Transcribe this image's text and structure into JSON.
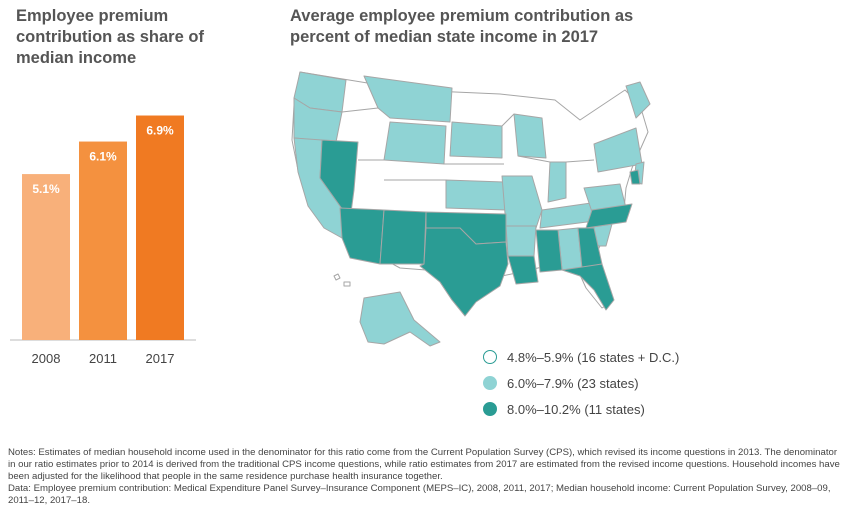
{
  "left_title": "Employee premium contribution as share of median income",
  "right_title": "Average employee premium contribution as percent of median state income in 2017",
  "chart_data": [
    {
      "type": "bar",
      "categories": [
        "2008",
        "2011",
        "2017"
      ],
      "values": [
        5.1,
        6.1,
        6.9
      ],
      "data_labels": [
        "5.1%",
        "6.1%",
        "6.9%"
      ],
      "colors": [
        "#f8b07a",
        "#f4913f",
        "#f07a22"
      ],
      "ylim": [
        0,
        7.5
      ]
    }
  ],
  "legend": [
    {
      "label": "4.8%–5.9% (16 states + D.C.)",
      "color": "#ffffff"
    },
    {
      "label": "6.0%–7.9% (23 states)",
      "color": "#8fd3d4"
    },
    {
      "label": "8.0%–10.2% (11 states)",
      "color": "#2a9c94"
    }
  ],
  "notes": "Notes: Estimates of median household income used in the denominator for this ratio come from the Current Population Survey (CPS), which revised its income questions in 2013. The denominator in our ratio estimates prior to 2014 is derived from the traditional CPS income questions, while ratio estimates from 2017 are estimated from the revised income questions. Household incomes have been adjusted for the likelihood that people in the same residence purchase health insurance together.",
  "data_source": "Data: Employee premium contribution: Medical Expenditure Panel Survey–Insurance Component (MEPS–IC), 2008, 2011, 2017; Median household income: Current Population Survey, 2008–09, 2011–12, 2017–18."
}
